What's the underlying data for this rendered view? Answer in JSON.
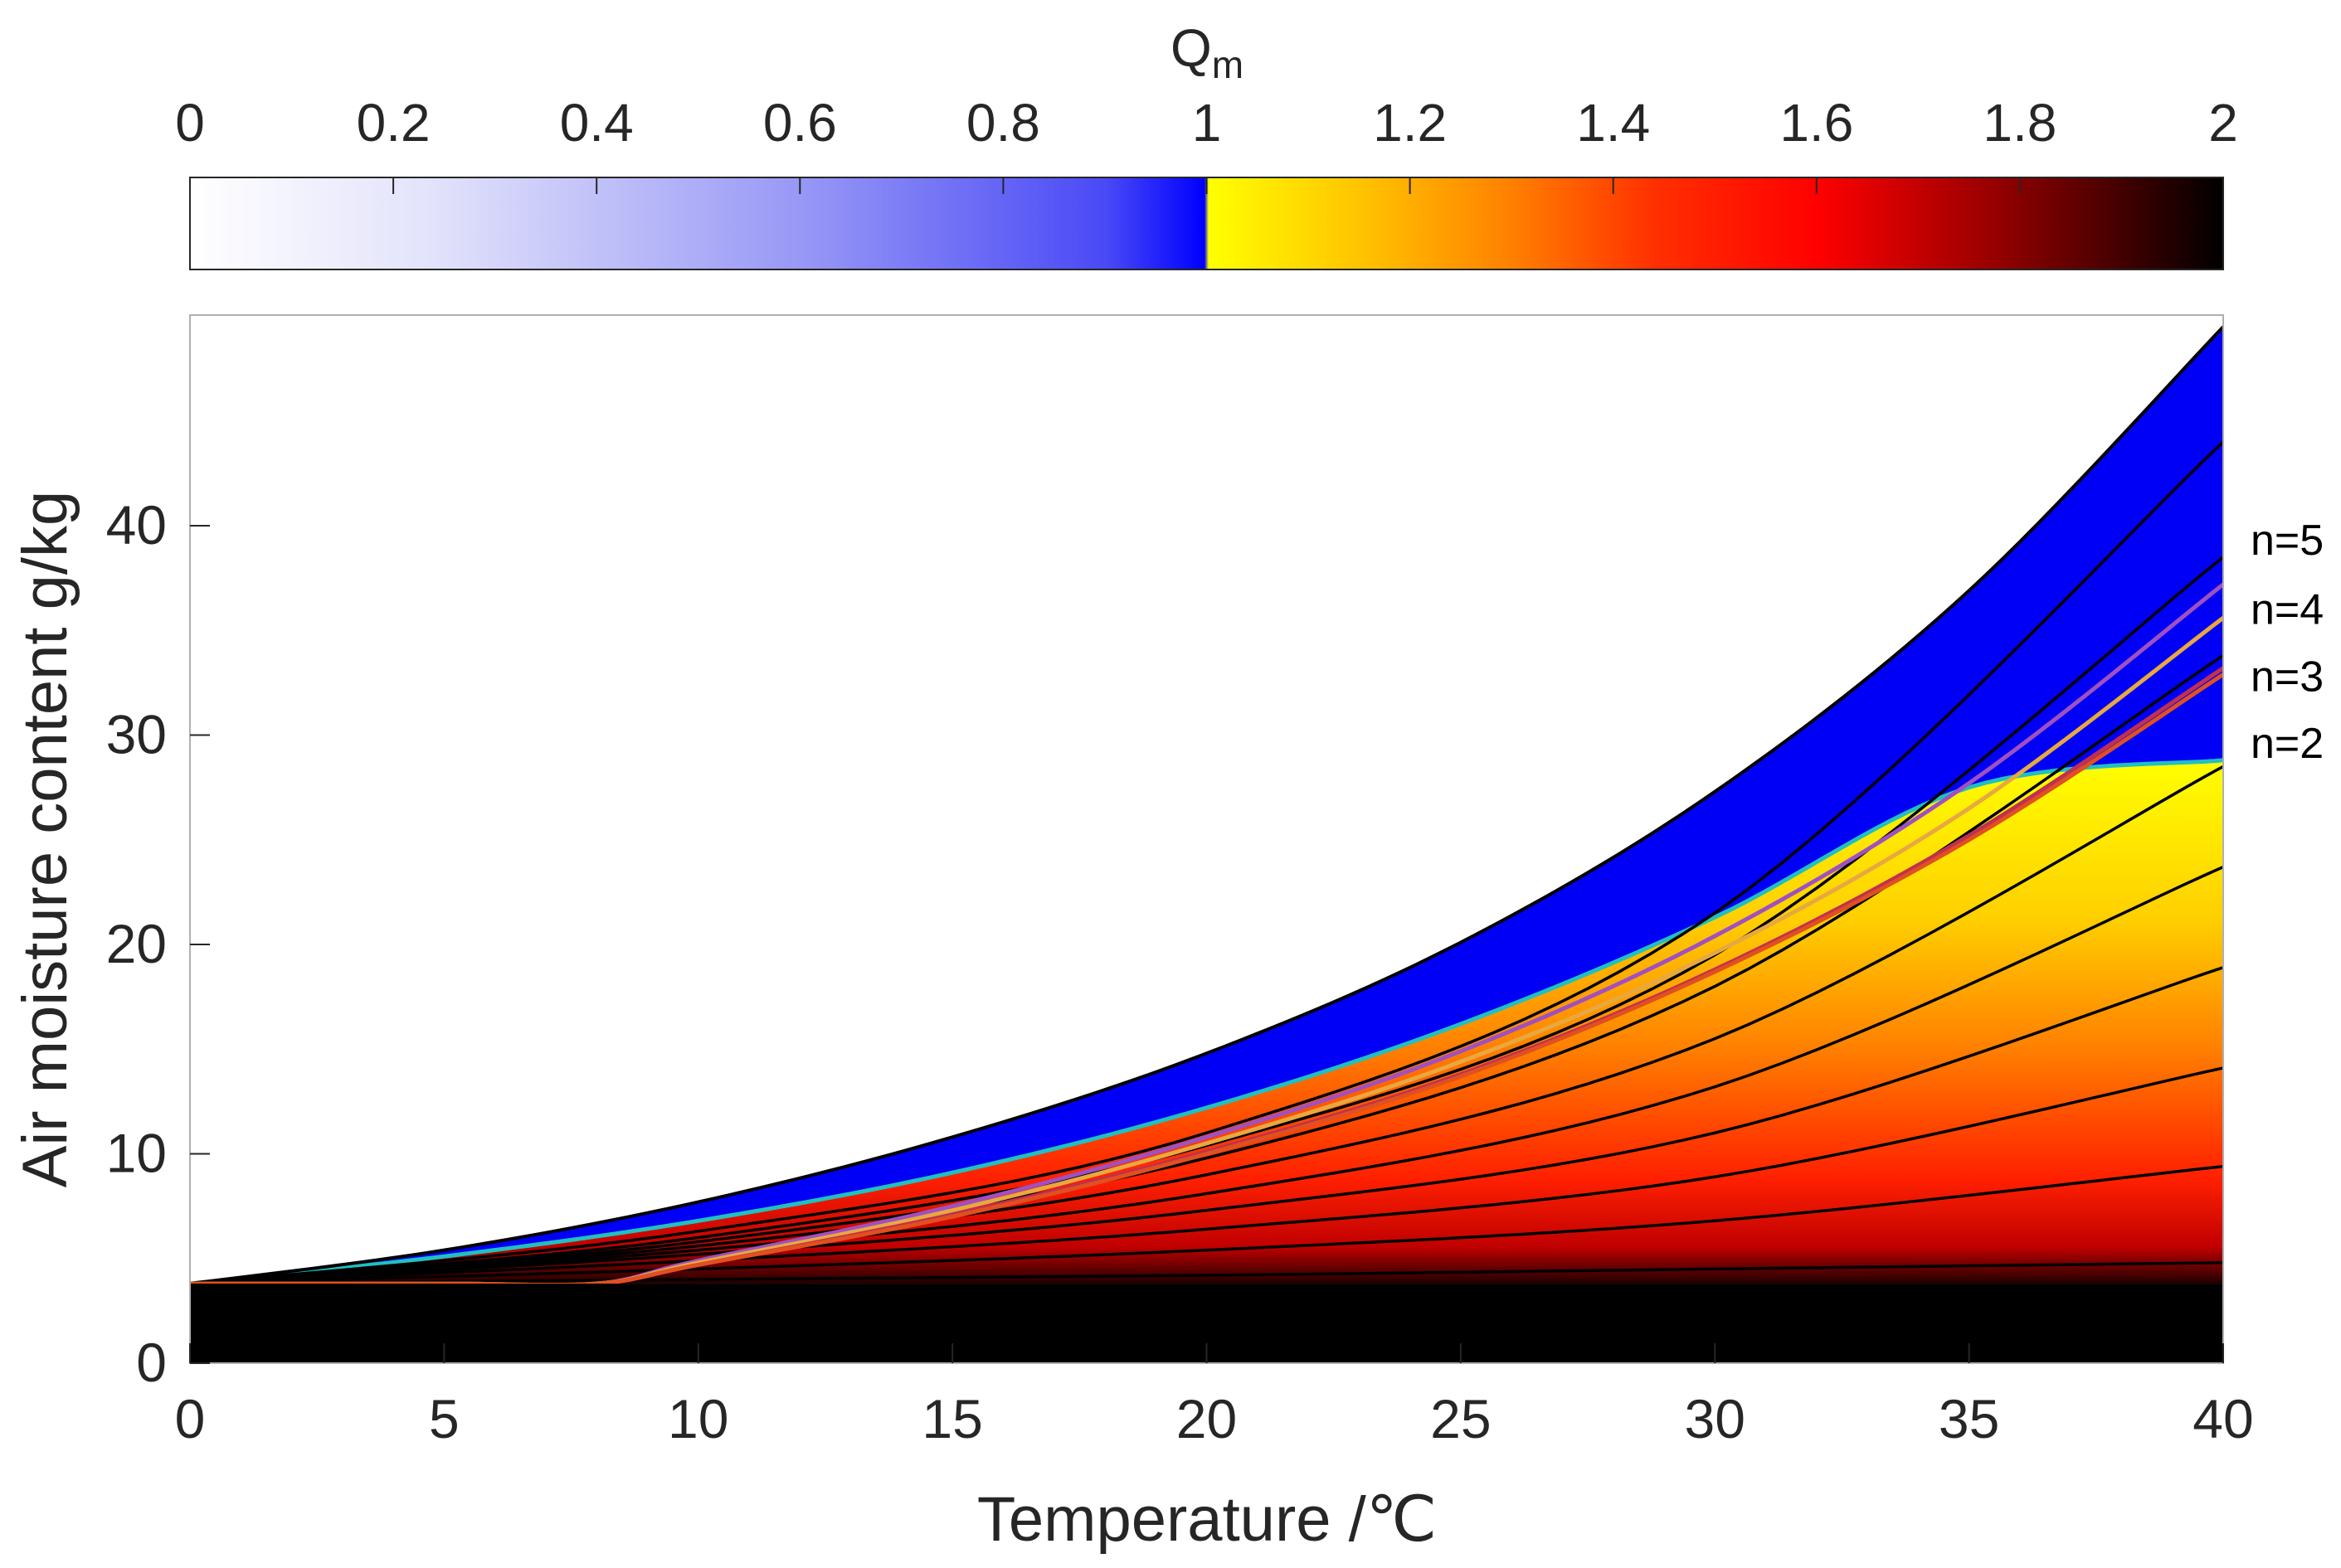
{
  "chart_data": {
    "type": "heatmap",
    "title": "",
    "xlabel": "Temperature /℃",
    "ylabel": "Air moisture content g/kg",
    "xlim": [
      0,
      40
    ],
    "ylim": [
      0,
      50
    ],
    "x_ticks": [
      "0",
      "5",
      "10",
      "15",
      "20",
      "25",
      "30",
      "35",
      "40"
    ],
    "y_ticks": [
      "0",
      "10",
      "20",
      "30",
      "40"
    ],
    "colorbar": {
      "label": "Q",
      "label_subscript": "m",
      "range": [
        0,
        2
      ],
      "ticks": [
        "0",
        "0.2",
        "0.4",
        "0.6",
        "0.8",
        "1",
        "1.2",
        "1.4",
        "1.6",
        "1.8",
        "2"
      ],
      "placement": "top",
      "colors": {
        "low": "#ffffff",
        "mid_low": "#0000ff",
        "mid_high": "#ffff00",
        "orange": "#ff8000",
        "red": "#ff0000",
        "high": "#000000"
      }
    },
    "region": {
      "baseline_moisture": 3.8,
      "saturation_curve": {
        "temperature": [
          0,
          5,
          10,
          15,
          20,
          25,
          30,
          35,
          40
        ],
        "moisture": [
          3.8,
          5.4,
          7.7,
          10.8,
          14.8,
          20.1,
          27.3,
          36.9,
          49.5
        ]
      },
      "q_equal_one_boundary": {
        "temperature": [
          0,
          5,
          10,
          15,
          20,
          25,
          30,
          35,
          40
        ],
        "moisture": [
          3.8,
          5.1,
          6.8,
          9.1,
          12.2,
          16.2,
          21.3,
          27.5,
          28.8
        ]
      }
    },
    "iso_lines": [
      {
        "name": "",
        "temperature": [
          0,
          10,
          20,
          30,
          40
        ],
        "moisture": [
          3.8,
          6.3,
          11.0,
          21.5,
          44.0
        ]
      },
      {
        "name": "",
        "temperature": [
          0,
          10,
          20,
          30,
          40
        ],
        "moisture": [
          3.8,
          6.0,
          10.4,
          19.5,
          38.5
        ]
      },
      {
        "name": "",
        "temperature": [
          0,
          10,
          20,
          30,
          40
        ],
        "moisture": [
          3.8,
          5.8,
          9.8,
          18.0,
          33.8
        ]
      },
      {
        "name": "",
        "temperature": [
          0,
          10,
          20,
          30,
          40
        ],
        "moisture": [
          3.8,
          5.6,
          9.0,
          15.5,
          28.5
        ]
      },
      {
        "name": "",
        "temperature": [
          0,
          10,
          20,
          30,
          40
        ],
        "moisture": [
          3.8,
          5.4,
          8.1,
          13.2,
          23.7
        ]
      },
      {
        "name": "",
        "temperature": [
          0,
          10,
          20,
          30,
          40
        ],
        "moisture": [
          3.8,
          5.2,
          7.3,
          11.0,
          18.9
        ]
      },
      {
        "name": "",
        "temperature": [
          0,
          10,
          20,
          30,
          40
        ],
        "moisture": [
          3.8,
          4.9,
          6.4,
          8.9,
          14.1
        ]
      },
      {
        "name": "",
        "temperature": [
          0,
          10,
          20,
          30,
          40
        ],
        "moisture": [
          3.8,
          4.5,
          5.4,
          6.8,
          9.4
        ]
      },
      {
        "name": "",
        "temperature": [
          0,
          10,
          20,
          30,
          40
        ],
        "moisture": [
          3.8,
          4.0,
          4.2,
          4.5,
          4.8
        ]
      }
    ],
    "series": [
      {
        "name": "n=5",
        "color": "#a050c0",
        "temperature": [
          0,
          5,
          8,
          10,
          15,
          20,
          25,
          30,
          35,
          40
        ],
        "moisture": [
          3.8,
          3.8,
          3.8,
          4.9,
          7.5,
          10.8,
          14.9,
          20.4,
          27.7,
          37.2
        ]
      },
      {
        "name": "n=4",
        "color": "#e8a840",
        "temperature": [
          0,
          5,
          8,
          10,
          15,
          20,
          25,
          30,
          35,
          40
        ],
        "moisture": [
          3.8,
          3.8,
          3.8,
          4.8,
          7.3,
          10.5,
          14.4,
          19.6,
          26.5,
          35.6
        ]
      },
      {
        "name": "n=3",
        "color": "#c03050",
        "temperature": [
          0,
          5,
          8,
          10,
          15,
          20,
          25,
          30,
          35,
          40
        ],
        "moisture": [
          3.8,
          3.8,
          3.8,
          4.7,
          7.1,
          10.1,
          13.8,
          18.8,
          25.2,
          33.2
        ]
      },
      {
        "name": "n=2",
        "color": "#e05020",
        "temperature": [
          0,
          5,
          8,
          10,
          15,
          20,
          25,
          30,
          35,
          40
        ],
        "moisture": [
          3.8,
          3.8,
          3.8,
          4.7,
          7.0,
          10.0,
          13.7,
          18.7,
          25.0,
          32.9
        ]
      }
    ],
    "series_labels": [
      "n=5",
      "n=4",
      "n=3",
      "n=2"
    ],
    "series_label_moisture": [
      39.4,
      36.1,
      32.9,
      29.7
    ]
  }
}
